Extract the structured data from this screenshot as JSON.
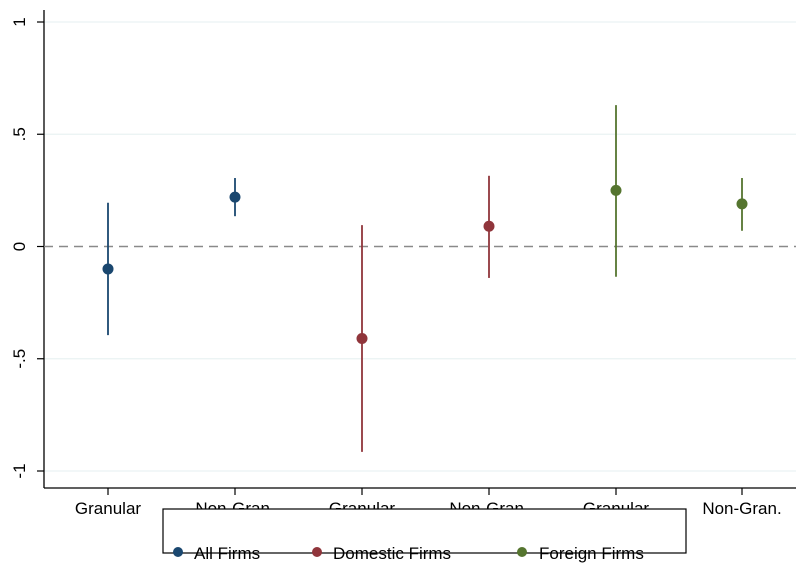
{
  "chart_data": {
    "type": "scatter",
    "title": "",
    "xlabel": "",
    "ylabel": "",
    "categories": [
      "Granular",
      "Non-Gran.",
      "Granular",
      "Non-Gran.",
      "Granular",
      "Non-Gran."
    ],
    "ylim": [
      -1.05,
      1.05
    ],
    "yticks": [
      1,
      0.5,
      0,
      -0.5,
      -1
    ],
    "ytick_labels": [
      "1",
      ".5",
      "0",
      "-.5",
      "-1"
    ],
    "reference_line": 0,
    "grid": true,
    "legend_position": "bottom",
    "series": [
      {
        "name": "All Firms",
        "color": "#1a476f",
        "points": [
          {
            "category_index": 0,
            "estimate": -0.1,
            "ci_low": -0.395,
            "ci_high": 0.195
          },
          {
            "category_index": 1,
            "estimate": 0.22,
            "ci_low": 0.135,
            "ci_high": 0.305
          }
        ]
      },
      {
        "name": "Domestic Firms",
        "color": "#90353b",
        "points": [
          {
            "category_index": 2,
            "estimate": -0.41,
            "ci_low": -0.915,
            "ci_high": 0.095
          },
          {
            "category_index": 3,
            "estimate": 0.09,
            "ci_low": -0.14,
            "ci_high": 0.315
          }
        ]
      },
      {
        "name": "Foreign Firms",
        "color": "#55752f",
        "points": [
          {
            "category_index": 4,
            "estimate": 0.25,
            "ci_low": -0.135,
            "ci_high": 0.63
          },
          {
            "category_index": 5,
            "estimate": 0.19,
            "ci_low": 0.07,
            "ci_high": 0.305
          }
        ]
      }
    ]
  }
}
